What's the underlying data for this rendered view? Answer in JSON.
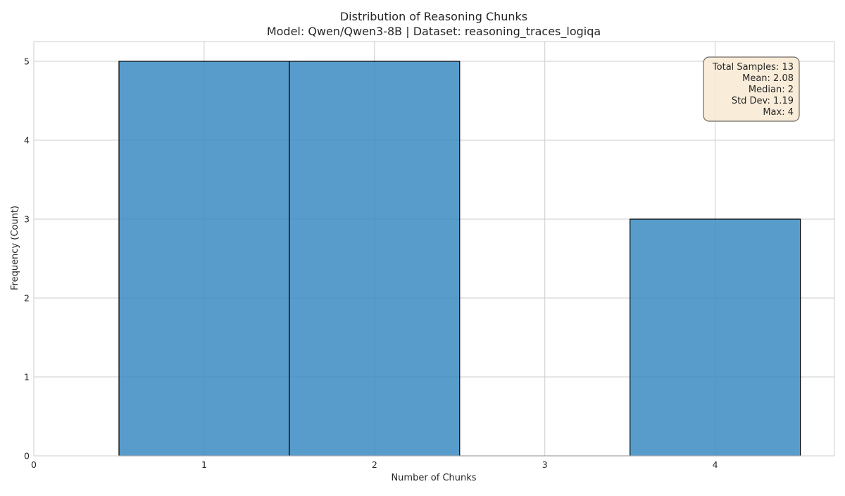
{
  "chart_data": {
    "type": "bar",
    "title": "Distribution of Reasoning Chunks",
    "subtitle": "Model: Qwen/Qwen3-8B | Dataset: reasoning_traces_logiqa",
    "xlabel": "Number of Chunks",
    "ylabel": "Frequency (Count)",
    "xlim": [
      0,
      4.7
    ],
    "ylim": [
      0,
      5.25
    ],
    "x_ticks": [
      0,
      1,
      2,
      3,
      4
    ],
    "y_ticks": [
      0,
      1,
      2,
      3,
      4,
      5
    ],
    "grid": true,
    "bar_color": "#3a8bc2",
    "bar_edge_color": "#000000",
    "bins": [
      {
        "x0": 0.5,
        "x1": 1.5,
        "count": 5
      },
      {
        "x0": 1.5,
        "x1": 2.5,
        "count": 5
      },
      {
        "x0": 2.5,
        "x1": 3.5,
        "count": 0
      },
      {
        "x0": 3.5,
        "x1": 4.5,
        "count": 3
      }
    ],
    "stats_box": {
      "lines": [
        "Total Samples: 13",
        "Mean: 2.08",
        "Median: 2",
        "Std Dev: 1.19",
        "Max: 4"
      ],
      "background": "#f8ead4",
      "position": "top-right"
    }
  }
}
